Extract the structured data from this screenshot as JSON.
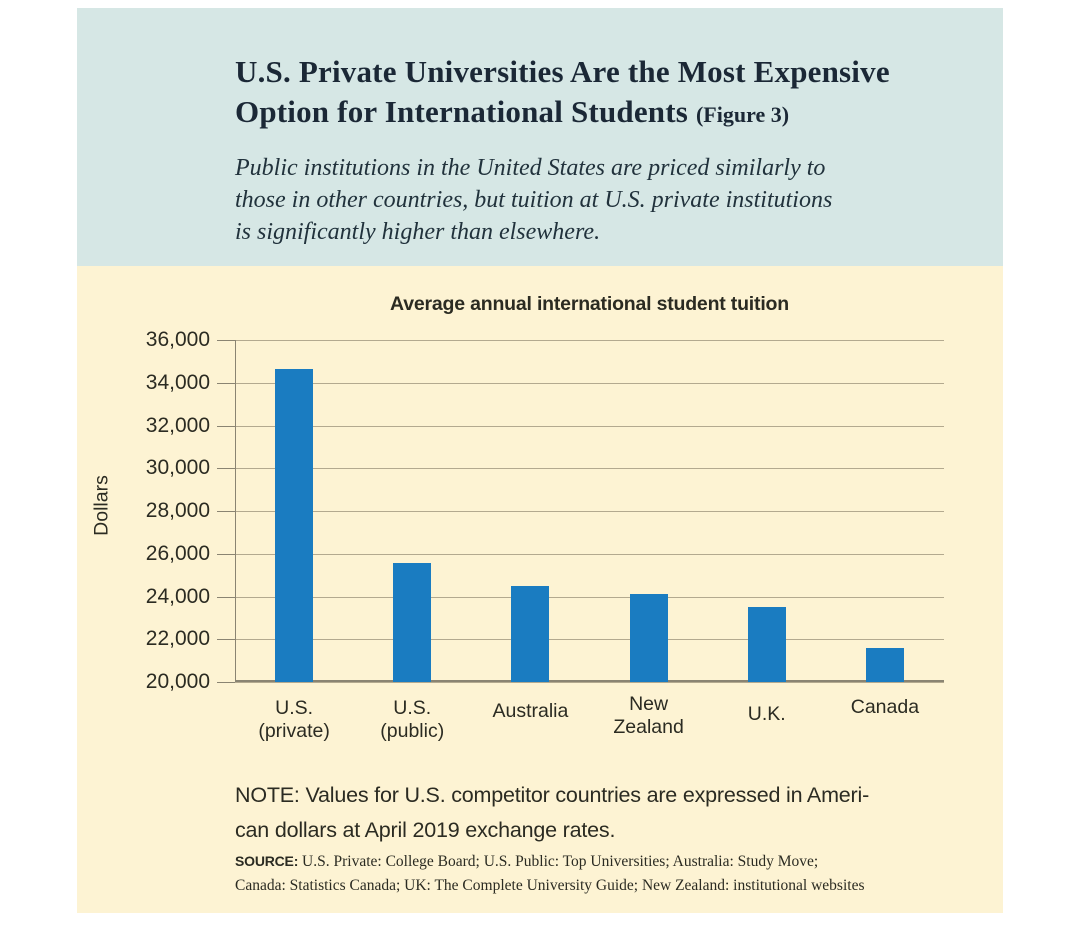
{
  "header": {
    "title_line1": "U.S. Private Universities Are the Most Expensive",
    "title_line2": "Option for International Students",
    "figure_tag": "(Figure 3)",
    "subtitle_lines": [
      "Public institutions in the United States are priced similarly to",
      "those in other countries, but tuition at U.S. private institutions",
      "is significantly higher than elsewhere."
    ],
    "background": "#d6e7e5"
  },
  "chart_data": {
    "type": "bar",
    "title": "Average annual international student tuition",
    "ylabel": "Dollars",
    "xlabel": "",
    "ylim": [
      20000,
      36000
    ],
    "ytick_step": 2000,
    "ytick_labels": [
      "36,000",
      "34,000",
      "32,000",
      "30,000",
      "28,000",
      "26,000",
      "24,000",
      "22,000",
      "20,000"
    ],
    "ytick_values": [
      36000,
      34000,
      32000,
      30000,
      28000,
      26000,
      24000,
      22000,
      20000
    ],
    "categories": [
      "U.S. (private)",
      "U.S. (public)",
      "Australia",
      "New Zealand",
      "U.K.",
      "Canada"
    ],
    "category_lines": [
      [
        "U.S.",
        "(private)"
      ],
      [
        "U.S.",
        "(public)"
      ],
      [
        "Australia"
      ],
      [
        "New",
        "Zealand"
      ],
      [
        "U.K."
      ],
      [
        "Canada"
      ]
    ],
    "values": [
      34650,
      25550,
      24500,
      24100,
      23500,
      21600
    ],
    "bar_color": "#1a7cc1",
    "grid": true,
    "gridline_color": "#b3a98f",
    "axis_color": "#8a8472",
    "plot_background": "#fdf3d3",
    "legend": "none"
  },
  "note": {
    "lines": [
      "NOTE: Values for U.S. competitor countries are expressed in Ameri-",
      "can dollars at April 2019 exchange rates."
    ]
  },
  "source": {
    "label": "SOURCE:",
    "line1": " U.S. Private: College Board; U.S. Public: Top Universities; Australia: Study Move;",
    "line2": "Canada: Statistics Canada; UK: The Complete University Guide; New Zealand: institutional websites"
  }
}
